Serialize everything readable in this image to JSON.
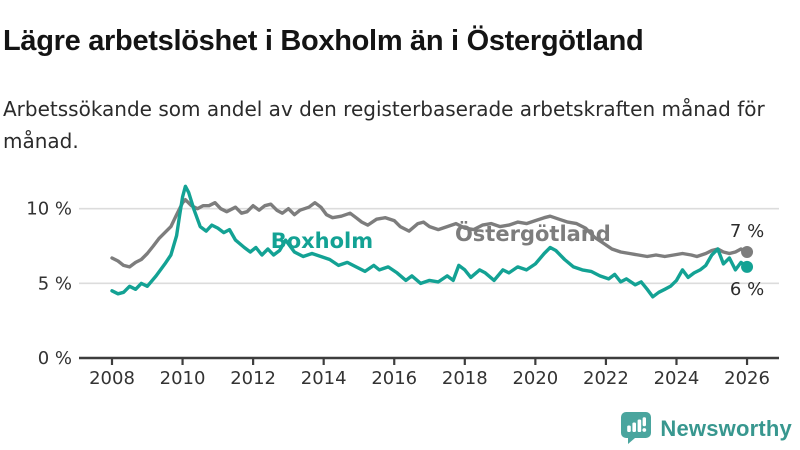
{
  "header": {
    "title": "Lägre arbetslöshet i Boxholm än i Östergötland",
    "subtitle": "Arbetssökande som andel av den registerbaserade arbetskraften månad för månad."
  },
  "chart_data": {
    "type": "line",
    "title": "Lägre arbetslöshet i Boxholm än i Östergötland",
    "unit": "%",
    "grid": "horizontal",
    "legend_position": "inline-labels",
    "x_axis": {
      "ticks": [
        2008,
        2010,
        2012,
        2014,
        2016,
        2018,
        2020,
        2022,
        2024,
        2026
      ],
      "range": [
        2007.1,
        2026.9
      ]
    },
    "y_axis": {
      "ticks": [
        0,
        5,
        10
      ],
      "suffix": " %",
      "gridlines": [
        5,
        10
      ],
      "range": [
        0,
        12.6
      ]
    },
    "colors": {
      "boxholm": "#13a294",
      "ostergotland": "#7d7d7d",
      "gridline": "#dcdcdc",
      "axis": "#3d3d3d"
    },
    "series": [
      {
        "id": "ostergotland",
        "name": "Östergötland",
        "color": "#7d7d7d",
        "label_anchor": {
          "year": 2019.93,
          "value": 8.3
        },
        "end_label": "7 %",
        "end_label_dy": -21,
        "points": [
          [
            2008,
            6.7
          ],
          [
            2008.17,
            6.5
          ],
          [
            2008.33,
            6.2
          ],
          [
            2008.5,
            6.1
          ],
          [
            2008.67,
            6.4
          ],
          [
            2008.83,
            6.6
          ],
          [
            2009,
            7.0
          ],
          [
            2009.17,
            7.5
          ],
          [
            2009.33,
            8.0
          ],
          [
            2009.5,
            8.4
          ],
          [
            2009.67,
            8.8
          ],
          [
            2009.83,
            9.6
          ],
          [
            2010,
            10.4
          ],
          [
            2010.08,
            10.6
          ],
          [
            2010.25,
            10.2
          ],
          [
            2010.42,
            10.0
          ],
          [
            2010.58,
            10.2
          ],
          [
            2010.75,
            10.2
          ],
          [
            2010.92,
            10.4
          ],
          [
            2011.08,
            10.0
          ],
          [
            2011.25,
            9.8
          ],
          [
            2011.5,
            10.1
          ],
          [
            2011.67,
            9.7
          ],
          [
            2011.83,
            9.8
          ],
          [
            2012,
            10.2
          ],
          [
            2012.17,
            9.9
          ],
          [
            2012.33,
            10.2
          ],
          [
            2012.5,
            10.3
          ],
          [
            2012.67,
            9.9
          ],
          [
            2012.83,
            9.7
          ],
          [
            2013,
            10.0
          ],
          [
            2013.17,
            9.6
          ],
          [
            2013.33,
            9.9
          ],
          [
            2013.58,
            10.1
          ],
          [
            2013.75,
            10.4
          ],
          [
            2013.92,
            10.1
          ],
          [
            2014.08,
            9.6
          ],
          [
            2014.25,
            9.4
          ],
          [
            2014.5,
            9.5
          ],
          [
            2014.75,
            9.7
          ],
          [
            2014.92,
            9.4
          ],
          [
            2015.08,
            9.1
          ],
          [
            2015.25,
            8.9
          ],
          [
            2015.5,
            9.3
          ],
          [
            2015.75,
            9.4
          ],
          [
            2016,
            9.2
          ],
          [
            2016.17,
            8.8
          ],
          [
            2016.42,
            8.5
          ],
          [
            2016.67,
            9.0
          ],
          [
            2016.83,
            9.1
          ],
          [
            2017,
            8.8
          ],
          [
            2017.25,
            8.6
          ],
          [
            2017.5,
            8.8
          ],
          [
            2017.75,
            9.0
          ],
          [
            2018,
            8.7
          ],
          [
            2018.25,
            8.6
          ],
          [
            2018.5,
            8.9
          ],
          [
            2018.75,
            9.0
          ],
          [
            2019,
            8.8
          ],
          [
            2019.25,
            8.9
          ],
          [
            2019.5,
            9.1
          ],
          [
            2019.75,
            9.0
          ],
          [
            2020,
            9.2
          ],
          [
            2020.25,
            9.4
          ],
          [
            2020.42,
            9.5
          ],
          [
            2020.67,
            9.3
          ],
          [
            2020.92,
            9.1
          ],
          [
            2021.17,
            9.0
          ],
          [
            2021.42,
            8.7
          ],
          [
            2021.67,
            8.1
          ],
          [
            2021.92,
            7.7
          ],
          [
            2022.17,
            7.3
          ],
          [
            2022.42,
            7.1
          ],
          [
            2022.67,
            7.0
          ],
          [
            2022.92,
            6.9
          ],
          [
            2023.17,
            6.8
          ],
          [
            2023.42,
            6.9
          ],
          [
            2023.67,
            6.8
          ],
          [
            2023.92,
            6.9
          ],
          [
            2024.17,
            7.0
          ],
          [
            2024.42,
            6.9
          ],
          [
            2024.58,
            6.8
          ],
          [
            2024.83,
            7.0
          ],
          [
            2025,
            7.2
          ],
          [
            2025.17,
            7.3
          ],
          [
            2025.33,
            7.1
          ],
          [
            2025.5,
            7.0
          ],
          [
            2025.67,
            7.1
          ],
          [
            2025.83,
            7.3
          ],
          [
            2026,
            7.1
          ]
        ]
      },
      {
        "id": "boxholm",
        "name": "Boxholm",
        "color": "#13a294",
        "label_anchor": {
          "year": 2013.95,
          "value": 7.85
        },
        "end_label": "6 %",
        "end_label_dy": 22,
        "points": [
          [
            2008,
            4.5
          ],
          [
            2008.17,
            4.3
          ],
          [
            2008.33,
            4.4
          ],
          [
            2008.5,
            4.8
          ],
          [
            2008.67,
            4.6
          ],
          [
            2008.83,
            5.0
          ],
          [
            2009,
            4.8
          ],
          [
            2009.25,
            5.5
          ],
          [
            2009.5,
            6.3
          ],
          [
            2009.67,
            6.9
          ],
          [
            2009.83,
            8.2
          ],
          [
            2009.92,
            9.6
          ],
          [
            2010,
            10.8
          ],
          [
            2010.08,
            11.5
          ],
          [
            2010.17,
            11.1
          ],
          [
            2010.33,
            9.9
          ],
          [
            2010.5,
            8.8
          ],
          [
            2010.67,
            8.5
          ],
          [
            2010.83,
            8.9
          ],
          [
            2011,
            8.7
          ],
          [
            2011.17,
            8.4
          ],
          [
            2011.33,
            8.6
          ],
          [
            2011.5,
            7.9
          ],
          [
            2011.75,
            7.4
          ],
          [
            2011.92,
            7.1
          ],
          [
            2012.08,
            7.4
          ],
          [
            2012.25,
            6.9
          ],
          [
            2012.42,
            7.3
          ],
          [
            2012.58,
            6.9
          ],
          [
            2012.75,
            7.2
          ],
          [
            2012.92,
            7.9
          ],
          [
            2013.17,
            7.1
          ],
          [
            2013.42,
            6.8
          ],
          [
            2013.67,
            7.0
          ],
          [
            2013.92,
            6.8
          ],
          [
            2014.17,
            6.6
          ],
          [
            2014.42,
            6.2
          ],
          [
            2014.67,
            6.4
          ],
          [
            2014.92,
            6.1
          ],
          [
            2015.17,
            5.8
          ],
          [
            2015.42,
            6.2
          ],
          [
            2015.58,
            5.9
          ],
          [
            2015.83,
            6.1
          ],
          [
            2016.08,
            5.7
          ],
          [
            2016.33,
            5.2
          ],
          [
            2016.5,
            5.5
          ],
          [
            2016.75,
            5.0
          ],
          [
            2017,
            5.2
          ],
          [
            2017.25,
            5.1
          ],
          [
            2017.5,
            5.5
          ],
          [
            2017.67,
            5.2
          ],
          [
            2017.83,
            6.2
          ],
          [
            2018,
            5.9
          ],
          [
            2018.17,
            5.4
          ],
          [
            2018.42,
            5.9
          ],
          [
            2018.58,
            5.7
          ],
          [
            2018.83,
            5.2
          ],
          [
            2019.08,
            5.9
          ],
          [
            2019.25,
            5.7
          ],
          [
            2019.5,
            6.1
          ],
          [
            2019.75,
            5.9
          ],
          [
            2020,
            6.3
          ],
          [
            2020.25,
            7.0
          ],
          [
            2020.42,
            7.4
          ],
          [
            2020.58,
            7.2
          ],
          [
            2020.83,
            6.6
          ],
          [
            2021.08,
            6.1
          ],
          [
            2021.33,
            5.9
          ],
          [
            2021.58,
            5.8
          ],
          [
            2021.83,
            5.5
          ],
          [
            2022.08,
            5.3
          ],
          [
            2022.25,
            5.6
          ],
          [
            2022.42,
            5.1
          ],
          [
            2022.58,
            5.3
          ],
          [
            2022.83,
            4.9
          ],
          [
            2023,
            5.1
          ],
          [
            2023.17,
            4.6
          ],
          [
            2023.33,
            4.1
          ],
          [
            2023.5,
            4.4
          ],
          [
            2023.67,
            4.6
          ],
          [
            2023.83,
            4.8
          ],
          [
            2024,
            5.2
          ],
          [
            2024.17,
            5.9
          ],
          [
            2024.33,
            5.4
          ],
          [
            2024.5,
            5.7
          ],
          [
            2024.67,
            5.9
          ],
          [
            2024.83,
            6.2
          ],
          [
            2025,
            6.9
          ],
          [
            2025.17,
            7.3
          ],
          [
            2025.33,
            6.3
          ],
          [
            2025.5,
            6.7
          ],
          [
            2025.67,
            5.9
          ],
          [
            2025.83,
            6.4
          ],
          [
            2026,
            6.1
          ]
        ]
      }
    ]
  },
  "footer": {
    "brand": "Newsworthy",
    "logo_color": "#4aa59e"
  }
}
